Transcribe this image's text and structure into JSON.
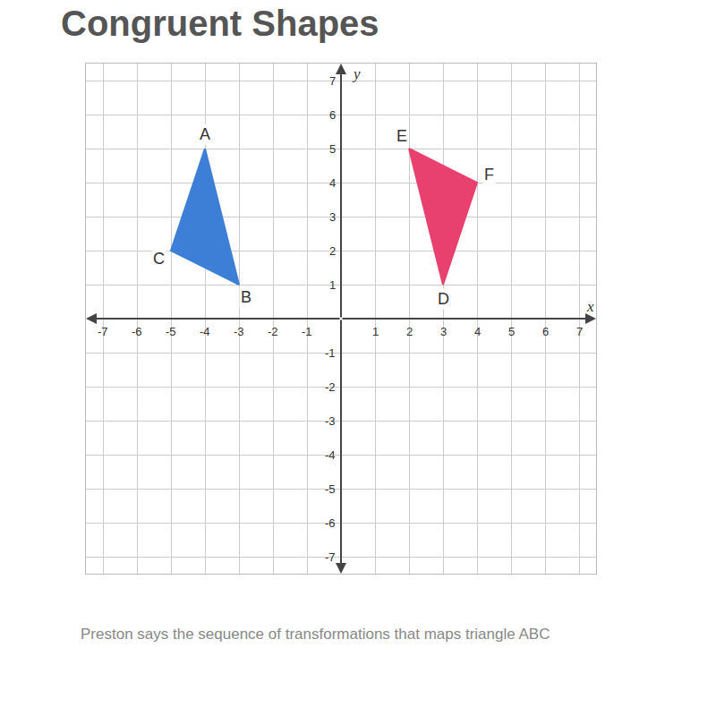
{
  "chart_data": {
    "type": "polygon",
    "title": "Congruent Shapes",
    "caption": "Preston says the sequence of transformations that maps triangle ABC",
    "x_label": "x",
    "y_label": "y",
    "xlim": [
      -7.5,
      7.5
    ],
    "ylim": [
      -7.5,
      7.5
    ],
    "xticks": [
      -7,
      -6,
      -5,
      -4,
      -3,
      -2,
      -1,
      1,
      2,
      3,
      4,
      5,
      6,
      7
    ],
    "yticks": [
      -7,
      -6,
      -5,
      -4,
      -3,
      -2,
      -1,
      1,
      2,
      3,
      4,
      5,
      6,
      7
    ],
    "grid": true,
    "series": [
      {
        "color": "#3d7fd6",
        "x": [
          -4,
          -3,
          -5
        ],
        "y": [
          5,
          1,
          2
        ],
        "labels": [
          "A",
          "B",
          "C"
        ]
      },
      {
        "color": "#e8416f",
        "x": [
          2,
          4,
          3
        ],
        "y": [
          5,
          4,
          1
        ],
        "labels": [
          "E",
          "F",
          "D"
        ]
      }
    ]
  }
}
